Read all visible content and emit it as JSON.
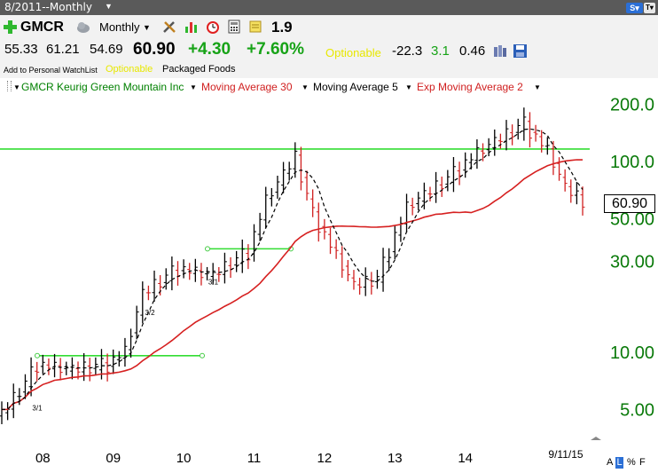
{
  "titlebar": {
    "period_label": "8/2011--Monthly",
    "sv_label": "S▾",
    "tv_label": "T▾"
  },
  "toolbar": {
    "symbol": "GMCR",
    "period": "Monthly",
    "rank": "1.9",
    "prices": {
      "open": "55.33",
      "high": "61.21",
      "low": "54.69",
      "close": "60.90"
    },
    "change": "+4.30",
    "change_pct": "+7.60%",
    "optionable": "Optionable",
    "stat1": "-22.3",
    "stat2": "3.1",
    "stat3": "0.46",
    "watchlist_link": "Add to Personal WatchList",
    "optionable_small": "Optionable",
    "industry": "Packaged Foods",
    "icons": [
      "add-icon",
      "cloud-icon",
      "tools-icon",
      "chart-bars-icon",
      "alarm-clock-icon",
      "calculator-icon",
      "note-icon",
      "books-icon",
      "save-icon"
    ]
  },
  "legend": {
    "security": "GMCR Keurig Green Mountain Inc",
    "ma30": "Moving Average 30",
    "ma5": "Moving Average 5",
    "ema2": "Exp Moving Average 2",
    "colors": {
      "security": "#008000",
      "ma30": "#d02020",
      "ma5": "#000000",
      "ema2": "#d02020"
    }
  },
  "chart_data": {
    "type": "ohlc",
    "title": "GMCR Keurig Green Mountain Inc",
    "y_scale": "log",
    "ylim": [
      4.2,
      230
    ],
    "y_ticks": [
      "200.0",
      "100.0",
      "50.00",
      "30.00",
      "10.00",
      "5.00"
    ],
    "x_ticks": [
      "08",
      "09",
      "10",
      "11",
      "12",
      "13",
      "14"
    ],
    "x_end_label": "9/11/15",
    "last_price": "60.90",
    "split_annotations": [
      "3/1",
      "3/2",
      "3/1"
    ],
    "horizontal_lines": [
      {
        "value": 115,
        "color": "#33dd33"
      },
      {
        "value": 9.5,
        "color": "#33dd33"
      },
      {
        "value": 34.5,
        "color": "#33dd33"
      }
    ],
    "monthly_close_approx": [
      {
        "date": "2007-06",
        "value": 4.7
      },
      {
        "date": "2007-10",
        "value": 6.8
      },
      {
        "date": "2007-12",
        "value": 8.5
      },
      {
        "date": "2008-06",
        "value": 8.0
      },
      {
        "date": "2008-12",
        "value": 8.5
      },
      {
        "date": "2009-03",
        "value": 10.0
      },
      {
        "date": "2009-06",
        "value": 20.0
      },
      {
        "date": "2009-12",
        "value": 27.0
      },
      {
        "date": "2010-06",
        "value": 25.0
      },
      {
        "date": "2010-12",
        "value": 33.0
      },
      {
        "date": "2011-03",
        "value": 62.0
      },
      {
        "date": "2011-08",
        "value": 104.0
      },
      {
        "date": "2011-11",
        "value": 52.0
      },
      {
        "date": "2012-06",
        "value": 22.0
      },
      {
        "date": "2012-10",
        "value": 24.0
      },
      {
        "date": "2013-03",
        "value": 57.0
      },
      {
        "date": "2013-10",
        "value": 80.0
      },
      {
        "date": "2014-03",
        "value": 110.0
      },
      {
        "date": "2014-11",
        "value": 155.0
      },
      {
        "date": "2015-03",
        "value": 113.0
      },
      {
        "date": "2015-06",
        "value": 72.0
      },
      {
        "date": "2015-09",
        "value": 60.9
      }
    ],
    "bottom_controls": [
      "A",
      "L",
      "%",
      "F"
    ]
  }
}
